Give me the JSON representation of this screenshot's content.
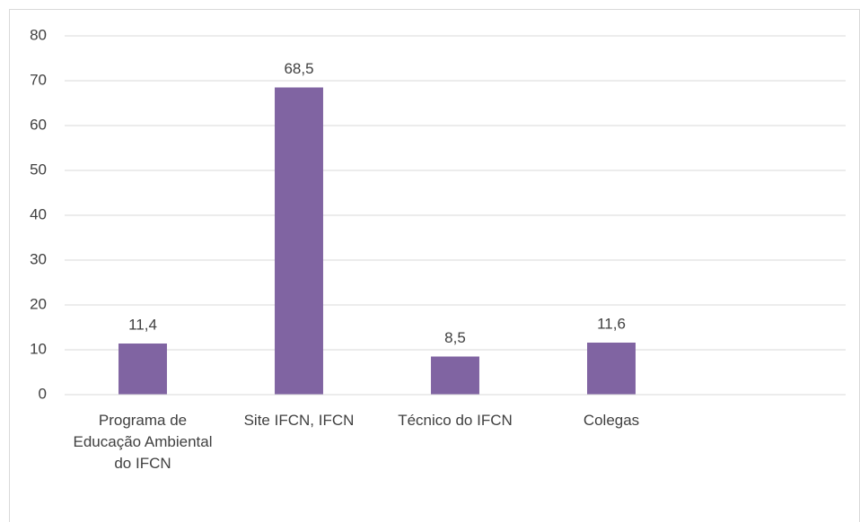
{
  "chart_data": {
    "type": "bar",
    "categories": [
      "Programa de Educação Ambiental do IFCN",
      "Site IFCN, IFCN",
      "Técnico do IFCN",
      "Colegas",
      null
    ],
    "values": [
      11.4,
      68.5,
      8.5,
      11.6,
      null
    ],
    "value_labels": [
      "11,4",
      "68,5",
      "8,5",
      "11,6",
      null
    ],
    "color": "#8064a2",
    "ylim": [
      0,
      80
    ],
    "yticks": [
      0,
      10,
      20,
      30,
      40,
      50,
      60,
      70,
      80
    ],
    "grid": true
  }
}
